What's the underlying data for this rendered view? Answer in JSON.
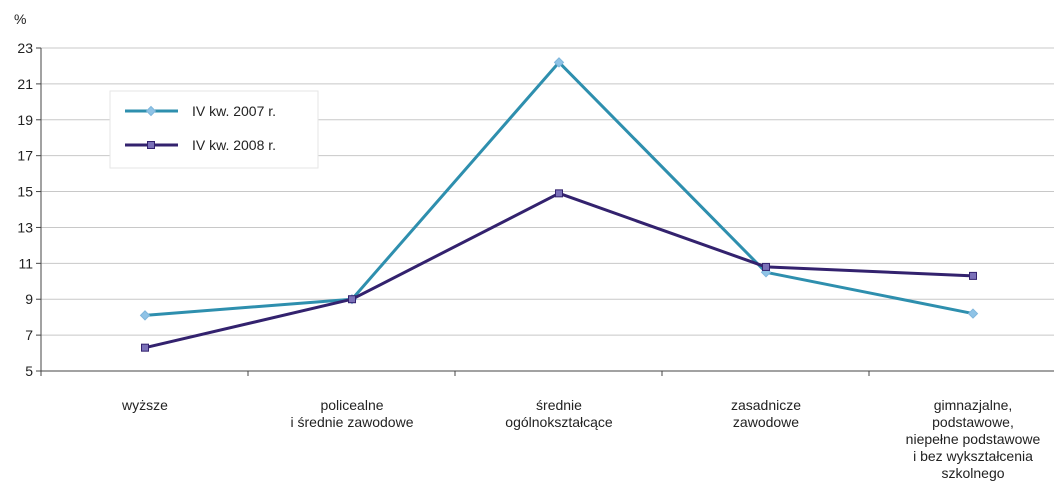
{
  "chart_data": {
    "type": "line",
    "unit_label": "%",
    "ylim": [
      5,
      23
    ],
    "yticks": [
      5,
      7,
      9,
      11,
      13,
      15,
      17,
      19,
      21,
      23
    ],
    "grid": true,
    "legend_position": "top-left",
    "categories": [
      [
        "wyższe"
      ],
      [
        "policealne",
        "i średnie zawodowe"
      ],
      [
        "średnie",
        "ogólnokształcące"
      ],
      [
        "zasadnicze",
        "zawodowe"
      ],
      [
        "gimnazjalne,",
        "podstawowe,",
        "niepełne podstawowe",
        "i bez wykształcenia",
        "szkolnego"
      ]
    ],
    "series": [
      {
        "name": "IV kw. 2007 r.",
        "color": "#2E8FAE",
        "marker": "diamond",
        "values": [
          8.1,
          9.0,
          22.2,
          10.5,
          8.2
        ]
      },
      {
        "name": "IV kw. 2008 r.",
        "color": "#33226E",
        "marker": "square",
        "values": [
          6.3,
          9.0,
          14.9,
          10.8,
          10.3
        ]
      }
    ]
  }
}
